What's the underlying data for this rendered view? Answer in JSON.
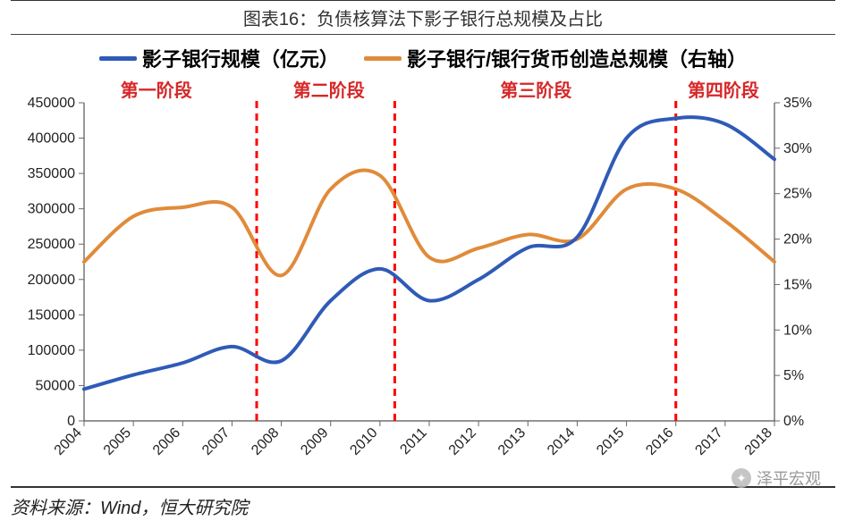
{
  "title": "图表16：负债核算法下影子银行总规模及占比",
  "legend": {
    "series1": {
      "label": "影子银行规模（亿元）",
      "color": "#2f5bb7"
    },
    "series2": {
      "label": "影子银行/银行货币创造总规模（右轴）",
      "color": "#e08b3a"
    }
  },
  "chart": {
    "type": "dual-axis-line",
    "background_color": "#ffffff",
    "plot_line_width": 4,
    "axis_font_size": 16,
    "x": {
      "categories": [
        "2004",
        "2005",
        "2006",
        "2007",
        "2008",
        "2009",
        "2010",
        "2011",
        "2012",
        "2013",
        "2014",
        "2015",
        "2016",
        "2017",
        "2018"
      ],
      "tick_rotation": -45
    },
    "y_left": {
      "min": 0,
      "max": 450000,
      "step": 50000,
      "ticks": [
        0,
        50000,
        100000,
        150000,
        200000,
        250000,
        300000,
        350000,
        400000,
        450000
      ]
    },
    "y_right": {
      "min": 0,
      "max": 0.35,
      "step": 0.05,
      "ticks": [
        "0%",
        "5%",
        "10%",
        "15%",
        "20%",
        "25%",
        "30%",
        "35%"
      ]
    },
    "series1_values": [
      45000,
      65000,
      82000,
      105000,
      85000,
      170000,
      215000,
      170000,
      200000,
      245000,
      260000,
      400000,
      428000,
      420000,
      370000
    ],
    "series2_values": [
      0.175,
      0.225,
      0.235,
      0.235,
      0.16,
      0.255,
      0.27,
      0.18,
      0.19,
      0.205,
      0.2,
      0.255,
      0.255,
      0.22,
      0.175
    ],
    "phase_lines": {
      "color": "#ff0000",
      "dash": "8 6",
      "width": 3,
      "x_positions_index": [
        3.5,
        6.3,
        12.0
      ]
    },
    "phases": [
      {
        "label": "第一阶段",
        "center_index": 1.5
      },
      {
        "label": "第二阶段",
        "center_index": 5.0
      },
      {
        "label": "第三阶段",
        "center_index": 9.2
      },
      {
        "label": "第四阶段",
        "center_index": 13.0
      }
    ]
  },
  "footer": "资料来源：Wind，恒大研究院",
  "watermark": "泽平宏观"
}
